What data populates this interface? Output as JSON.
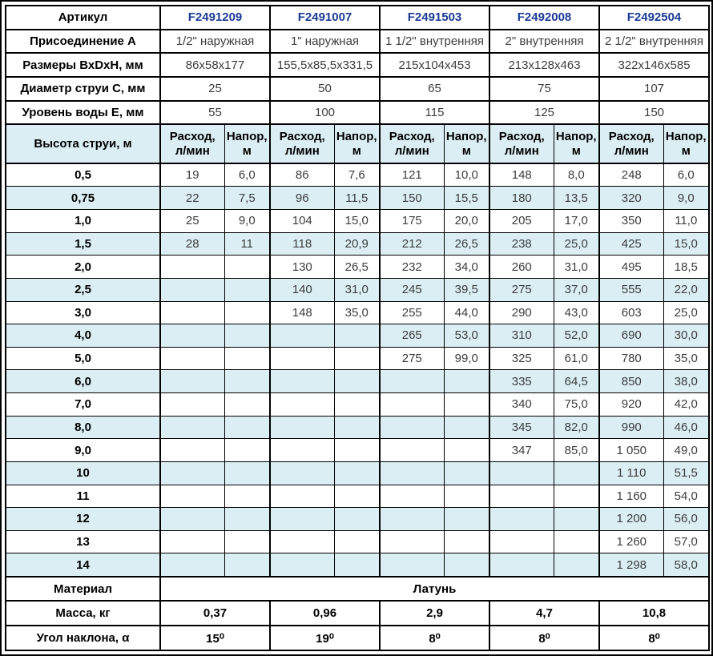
{
  "colors": {
    "article_blue": "#1b3a94",
    "stripe": "#daeef3",
    "border": "#000000"
  },
  "spec": {
    "rows": [
      {
        "label": "Артикул",
        "values": [
          "F2491209",
          "F2491007",
          "F2491503",
          "F2492008",
          "F2492504"
        ]
      },
      {
        "label": "Присоединение А",
        "values": [
          "1/2\" наружная",
          "1\" наружная",
          "1 1/2\" внутренняя",
          "2\" внутренняя",
          "2 1/2\" внутренняя"
        ]
      },
      {
        "label": "Размеры ВхDхН, мм",
        "values": [
          "86х58х177",
          "155,5х85,5х331,5",
          "215х104х453",
          "213х128х463",
          "322х146х585"
        ]
      },
      {
        "label": "Диаметр струи С, мм",
        "values": [
          "25",
          "50",
          "65",
          "75",
          "107"
        ]
      },
      {
        "label": "Уровень воды Е, мм",
        "values": [
          "55",
          "100",
          "115",
          "125",
          "150"
        ]
      }
    ]
  },
  "jet_header": {
    "label": "Высота струи, м",
    "flow": "Расход, л/мин",
    "head": "Напор, м"
  },
  "jet_rows": [
    {
      "h": "0,5",
      "cells": [
        "19",
        "6,0",
        "86",
        "7,6",
        "121",
        "10,0",
        "148",
        "8,0",
        "248",
        "6,0"
      ]
    },
    {
      "h": "0,75",
      "cells": [
        "22",
        "7,5",
        "96",
        "11,5",
        "150",
        "15,5",
        "180",
        "13,5",
        "320",
        "9,0"
      ]
    },
    {
      "h": "1,0",
      "cells": [
        "25",
        "9,0",
        "104",
        "15,0",
        "175",
        "20,0",
        "205",
        "17,0",
        "350",
        "11,0"
      ]
    },
    {
      "h": "1,5",
      "cells": [
        "28",
        "11",
        "118",
        "20,9",
        "212",
        "26,5",
        "238",
        "25,0",
        "425",
        "15,0"
      ]
    },
    {
      "h": "2,0",
      "cells": [
        "",
        "",
        "130",
        "26,5",
        "232",
        "34,0",
        "260",
        "31,0",
        "495",
        "18,5"
      ]
    },
    {
      "h": "2,5",
      "cells": [
        "",
        "",
        "140",
        "31,0",
        "245",
        "39,5",
        "275",
        "37,0",
        "555",
        "22,0"
      ]
    },
    {
      "h": "3,0",
      "cells": [
        "",
        "",
        "148",
        "35,0",
        "255",
        "44,0",
        "290",
        "43,0",
        "603",
        "25,0"
      ]
    },
    {
      "h": "4,0",
      "cells": [
        "",
        "",
        "",
        "",
        "265",
        "53,0",
        "310",
        "52,0",
        "690",
        "30,0"
      ]
    },
    {
      "h": "5,0",
      "cells": [
        "",
        "",
        "",
        "",
        "275",
        "99,0",
        "325",
        "61,0",
        "780",
        "35,0"
      ]
    },
    {
      "h": "6,0",
      "cells": [
        "",
        "",
        "",
        "",
        "",
        "",
        "335",
        "64,5",
        "850",
        "38,0"
      ]
    },
    {
      "h": "7,0",
      "cells": [
        "",
        "",
        "",
        "",
        "",
        "",
        "340",
        "75,0",
        "920",
        "42,0"
      ]
    },
    {
      "h": "8,0",
      "cells": [
        "",
        "",
        "",
        "",
        "",
        "",
        "345",
        "82,0",
        "990",
        "46,0"
      ]
    },
    {
      "h": "9,0",
      "cells": [
        "",
        "",
        "",
        "",
        "",
        "",
        "347",
        "85,0",
        "1 050",
        "49,0"
      ]
    },
    {
      "h": "10",
      "cells": [
        "",
        "",
        "",
        "",
        "",
        "",
        "",
        "",
        "1 110",
        "51,5"
      ]
    },
    {
      "h": "11",
      "cells": [
        "",
        "",
        "",
        "",
        "",
        "",
        "",
        "",
        "1 160",
        "54,0"
      ]
    },
    {
      "h": "12",
      "cells": [
        "",
        "",
        "",
        "",
        "",
        "",
        "",
        "",
        "1 200",
        "56,0"
      ]
    },
    {
      "h": "13",
      "cells": [
        "",
        "",
        "",
        "",
        "",
        "",
        "",
        "",
        "1 260",
        "57,0"
      ]
    },
    {
      "h": "14",
      "cells": [
        "",
        "",
        "",
        "",
        "",
        "",
        "",
        "",
        "1 298",
        "58,0"
      ]
    }
  ],
  "material": {
    "label": "Материал",
    "value": "Латунь"
  },
  "mass": {
    "label": "Масса, кг",
    "values": [
      "0,37",
      "0,96",
      "2,9",
      "4,7",
      "10,8"
    ]
  },
  "angle": {
    "label": "Угол наклона, α",
    "values": [
      "15⁰",
      "19⁰",
      "8⁰",
      "8⁰",
      "8⁰"
    ]
  }
}
